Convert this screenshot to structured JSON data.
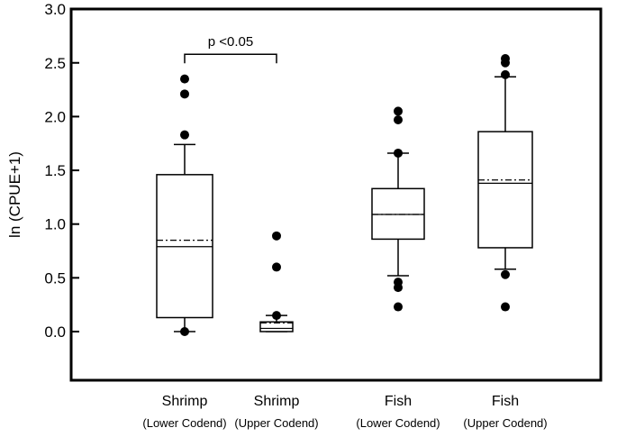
{
  "chart_data": {
    "type": "box",
    "title": "",
    "xlabel": "",
    "ylabel": "ln (CPUE+1)",
    "ylim": [
      -0.4,
      3.0
    ],
    "yticks": [
      0.0,
      0.5,
      1.0,
      1.5,
      2.0,
      2.5,
      3.0
    ],
    "ytick_labels": [
      "0.0",
      "0.5",
      "1.0",
      "1.5",
      "2.0",
      "2.5",
      "3.0"
    ],
    "grid": false,
    "categories": [
      {
        "main": "Shrimp",
        "sub": "(Lower Codend)"
      },
      {
        "main": "Shrimp",
        "sub": "(Upper Codend)"
      },
      {
        "main": "Fish",
        "sub": "(Lower Codend)"
      },
      {
        "main": "Fish",
        "sub": "(Upper Codend)"
      }
    ],
    "boxes": [
      {
        "whisker_low": 0.0,
        "q1": 0.13,
        "median": 0.79,
        "mean": 0.85,
        "q3": 1.46,
        "whisker_high": 1.74,
        "outliers": [
          0.0,
          1.83,
          2.21,
          2.35
        ]
      },
      {
        "whisker_low": 0.0,
        "q1": 0.0,
        "median": 0.03,
        "mean": 0.08,
        "q3": 0.09,
        "whisker_high": 0.15,
        "outliers": [
          0.15,
          0.6,
          0.89
        ]
      },
      {
        "whisker_low": 0.52,
        "q1": 0.86,
        "median": 1.09,
        "mean": 1.09,
        "q3": 1.33,
        "whisker_high": 1.66,
        "outliers": [
          0.23,
          0.41,
          0.46,
          1.66,
          1.97,
          2.05
        ]
      },
      {
        "whisker_low": 0.58,
        "q1": 0.78,
        "median": 1.38,
        "mean": 1.41,
        "q3": 1.86,
        "whisker_high": 2.37,
        "outliers": [
          0.23,
          0.53,
          2.39,
          2.5,
          2.54
        ]
      }
    ],
    "annotation": {
      "text": "p <0.05",
      "between": [
        0,
        1
      ],
      "y": 2.58
    }
  }
}
